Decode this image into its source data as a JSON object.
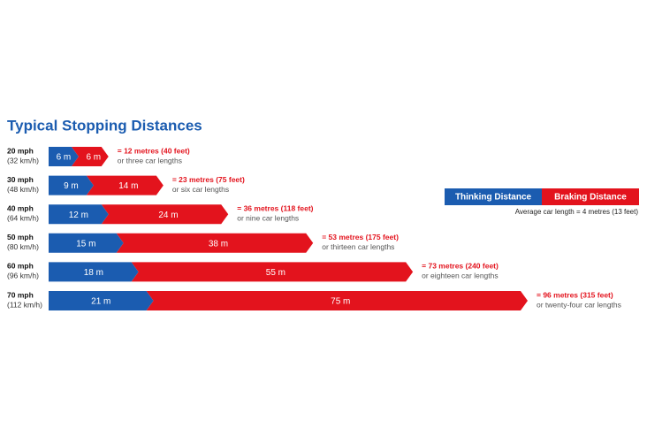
{
  "chart_data": {
    "type": "stacked-arrow-bar",
    "title": "Typical Stopping Distances",
    "categories": [
      "20 mph",
      "30 mph",
      "40 mph",
      "50 mph",
      "60 mph",
      "70 mph"
    ],
    "category_sublabels": [
      "(32 km/h)",
      "(48 km/h)",
      "(64 km/h)",
      "(80 km/h)",
      "(96 km/h)",
      "(112 km/h)"
    ],
    "series": [
      {
        "name": "Thinking Distance",
        "color": "#1b5cb0",
        "values": [
          6,
          9,
          12,
          15,
          18,
          21
        ],
        "value_labels": [
          "6 m",
          "9 m",
          "12 m",
          "15 m",
          "18 m",
          "21 m"
        ]
      },
      {
        "name": "Braking Distance",
        "color": "#e3131d",
        "values": [
          6,
          14,
          24,
          38,
          55,
          75
        ],
        "value_labels": [
          "6 m",
          "14 m",
          "24 m",
          "38 m",
          "55 m",
          "75 m"
        ]
      }
    ],
    "total_labels": [
      "= 12 metres (40 feet)",
      "= 23 metres (75 feet)",
      "= 36 metres (118 feet)",
      "= 53 metres (175 feet)",
      "= 73 metres (240 feet)",
      "= 96 metres (315 feet)"
    ],
    "car_length_labels": [
      "or three car lengths",
      "or six car lengths",
      "or nine car lengths",
      "or thirteen car lengths",
      "or eighteen car lengths",
      "or twenty-four car lengths"
    ],
    "note": "Average car length = 4 metres (13 feet)"
  }
}
